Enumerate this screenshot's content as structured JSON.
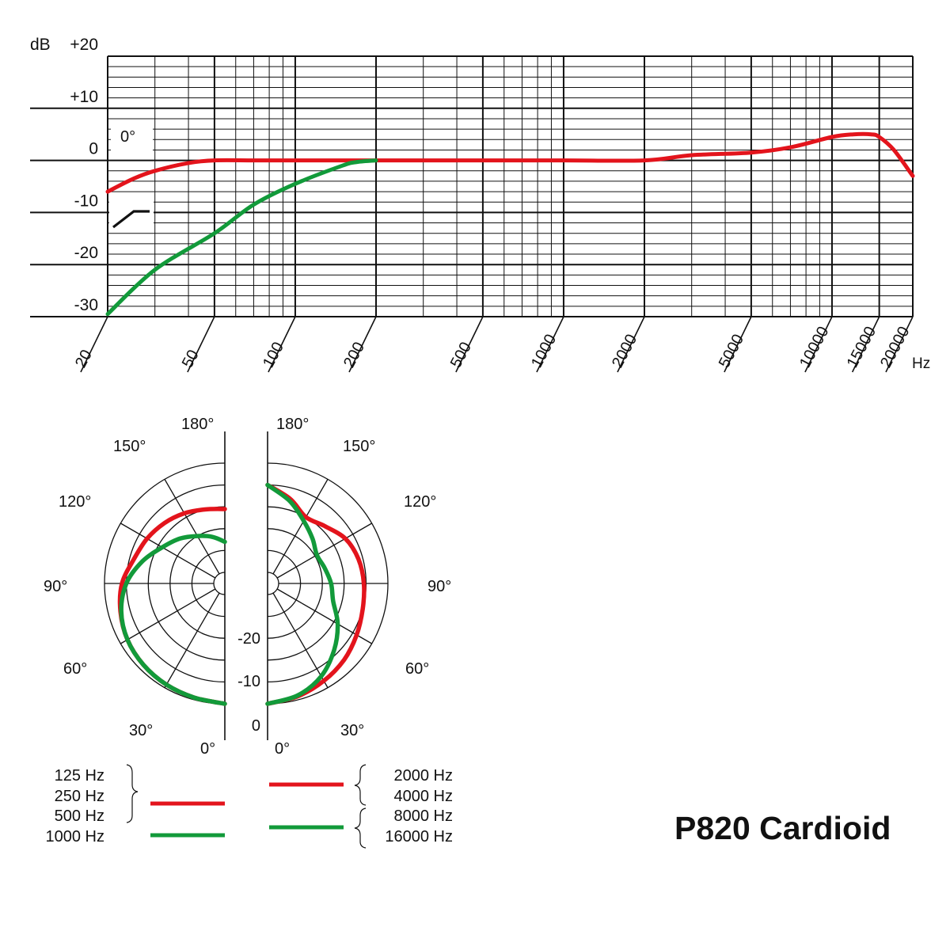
{
  "title": "P820 Cardioid",
  "colors": {
    "red": "#e3141c",
    "green": "#129a3a",
    "grid": "#111111"
  },
  "chart_data": [
    {
      "type": "line",
      "title": "",
      "xlabel": "Hz",
      "ylabel": "dB",
      "x_scale": "log",
      "xlim": [
        20,
        20000
      ],
      "ylim": [
        -30,
        20
      ],
      "x_ticks": [
        20,
        50,
        100,
        200,
        500,
        1000,
        2000,
        5000,
        10000,
        15000,
        20000
      ],
      "x_tick_labels": [
        "20",
        "50",
        "100",
        "200",
        "500",
        "1000",
        "2000",
        "5000",
        "10000",
        "15000",
        "20000"
      ],
      "y_ticks": [
        20,
        10,
        0,
        -10,
        -20,
        -30
      ],
      "y_tick_labels": [
        "+20",
        "+10",
        "0",
        "-10",
        "-20",
        "-30"
      ],
      "annotations": [
        "0°"
      ],
      "grid": true,
      "series": [
        {
          "color": "#e3141c",
          "x": [
            20,
            25,
            30,
            40,
            50,
            70,
            100,
            200,
            500,
            1000,
            2000,
            3000,
            5000,
            7000,
            10000,
            12000,
            14000,
            15000,
            17000,
            20000
          ],
          "y": [
            -6,
            -3.5,
            -2,
            -0.5,
            0,
            0,
            0,
            0,
            0,
            0,
            0,
            1,
            1.5,
            2.5,
            4.5,
            5,
            5,
            4.5,
            2,
            -3
          ]
        },
        {
          "color": "#129a3a",
          "x": [
            20,
            30,
            50,
            70,
            100,
            150,
            170,
            200
          ],
          "y": [
            -29.5,
            -21,
            -14,
            -8.5,
            -4.5,
            -1,
            -0.3,
            0
          ]
        }
      ]
    },
    {
      "type": "polar",
      "angle_labels": [
        "0°",
        "30°",
        "60°",
        "90°",
        "120°",
        "150°",
        "180°",
        "0°",
        "30°",
        "60°",
        "90°",
        "120°",
        "150°",
        "180°"
      ],
      "radial_labels": [
        "0",
        "-10",
        "-20"
      ],
      "series": [
        {
          "name": "125 Hz, 250 Hz, 500 Hz",
          "side": "left",
          "color": "#e3141c",
          "angles": [
            0,
            15,
            30,
            45,
            60,
            75,
            90,
            105,
            120,
            135,
            150,
            165,
            180
          ],
          "db": [
            0,
            -0.5,
            -0.8,
            -1.2,
            -1.8,
            -2.8,
            -4,
            -6,
            -7,
            -8,
            -9,
            -10,
            -10.5
          ]
        },
        {
          "name": "1000 Hz",
          "side": "left",
          "color": "#129a3a",
          "angles": [
            0,
            15,
            30,
            45,
            60,
            75,
            90,
            105,
            120,
            135,
            150,
            165,
            180
          ],
          "db": [
            0,
            -0.5,
            -0.8,
            -1.2,
            -1.8,
            -3,
            -5,
            -8,
            -11,
            -13,
            -15,
            -16.5,
            -18
          ]
        },
        {
          "name": "2000 Hz, 4000 Hz",
          "side": "right",
          "color": "#e3141c",
          "angles": [
            0,
            15,
            30,
            45,
            60,
            75,
            90,
            105,
            120,
            135,
            150,
            165,
            180
          ],
          "db": [
            0,
            -0.8,
            -1.8,
            -2.8,
            -4,
            -5,
            -5.5,
            -6,
            -7,
            -9,
            -10,
            -7.5,
            -5
          ]
        },
        {
          "name": "8000 Hz, 16000 Hz",
          "side": "right",
          "color": "#129a3a",
          "angles": [
            0,
            15,
            30,
            45,
            60,
            75,
            90,
            105,
            120,
            135,
            150,
            165,
            180
          ],
          "db": [
            0,
            -1,
            -3,
            -6,
            -9,
            -12,
            -13,
            -14,
            -14.5,
            -13,
            -11,
            -8,
            -5
          ]
        }
      ]
    }
  ],
  "legend": {
    "left_labels": [
      "125 Hz",
      "250 Hz",
      "500 Hz",
      "1000 Hz"
    ],
    "right_labels": [
      "2000 Hz",
      "4000 Hz",
      "8000 Hz",
      "16000 Hz"
    ]
  }
}
